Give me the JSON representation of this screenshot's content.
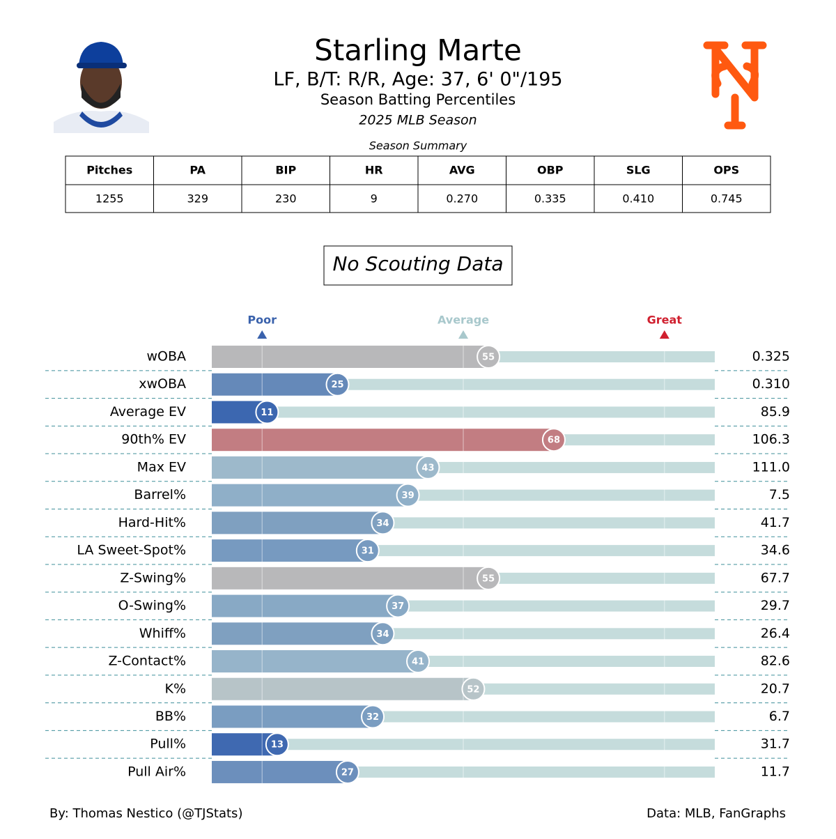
{
  "header": {
    "title": "Starling Marte",
    "subtitle": "LF, B/T: R/R, Age: 37, 6' 0\"/195",
    "description": "Season Batting Percentiles",
    "season": "2025 MLB Season"
  },
  "table": {
    "caption": "Season Summary",
    "columns": [
      "Pitches",
      "PA",
      "BIP",
      "HR",
      "AVG",
      "OBP",
      "SLG",
      "OPS"
    ],
    "rows": [
      [
        "1255",
        "329",
        "230",
        "9",
        "0.270",
        "0.335",
        "0.410",
        "0.745"
      ]
    ]
  },
  "notice": "No Scouting Data",
  "chart_data": {
    "type": "bar",
    "orientation": "horizontal",
    "categories": [
      "wOBA",
      "xwOBA",
      "Average EV",
      "90th% EV",
      "Max EV",
      "Barrel%",
      "Hard-Hit%",
      "LA Sweet-Spot%",
      "Z-Swing%",
      "O-Swing%",
      "Whiff%",
      "Z-Contact%",
      "K%",
      "BB%",
      "Pull%",
      "Pull Air%"
    ],
    "values": [
      55,
      25,
      11,
      68,
      43,
      39,
      34,
      31,
      55,
      37,
      34,
      41,
      52,
      32,
      13,
      27
    ],
    "stats": [
      "0.325",
      "0.310",
      "85.9",
      "106.3",
      "111.0",
      "7.5",
      "41.7",
      "34.6",
      "67.7",
      "29.7",
      "26.4",
      "82.6",
      "20.7",
      "6.7",
      "31.7",
      "11.7"
    ],
    "colors": [
      "#b8b8ba",
      "#6589b9",
      "#3c67b0",
      "#c27d82",
      "#9db9cb",
      "#8fafc8",
      "#7fa0c0",
      "#779ac0",
      "#b8b8ba",
      "#88a9c5",
      "#7fa0c0",
      "#96b4ca",
      "#b7c4c8",
      "#7a9dc1",
      "#3f69b1",
      "#6c8fbc"
    ],
    "track_color": "#c5dcdc",
    "xlim": [
      0,
      100
    ],
    "xticks": [
      {
        "value": 10,
        "label": "Poor"
      },
      {
        "value": 50,
        "label": "Average"
      },
      {
        "value": 90,
        "label": "Great"
      }
    ],
    "xtick_colors": [
      "#3a62ac",
      "#a8c8cc",
      "#d0202f"
    ],
    "grid": true
  },
  "footer": {
    "credit": "By: Thomas Nestico (@TJStats)",
    "source": "Data: MLB, FanGraphs"
  }
}
